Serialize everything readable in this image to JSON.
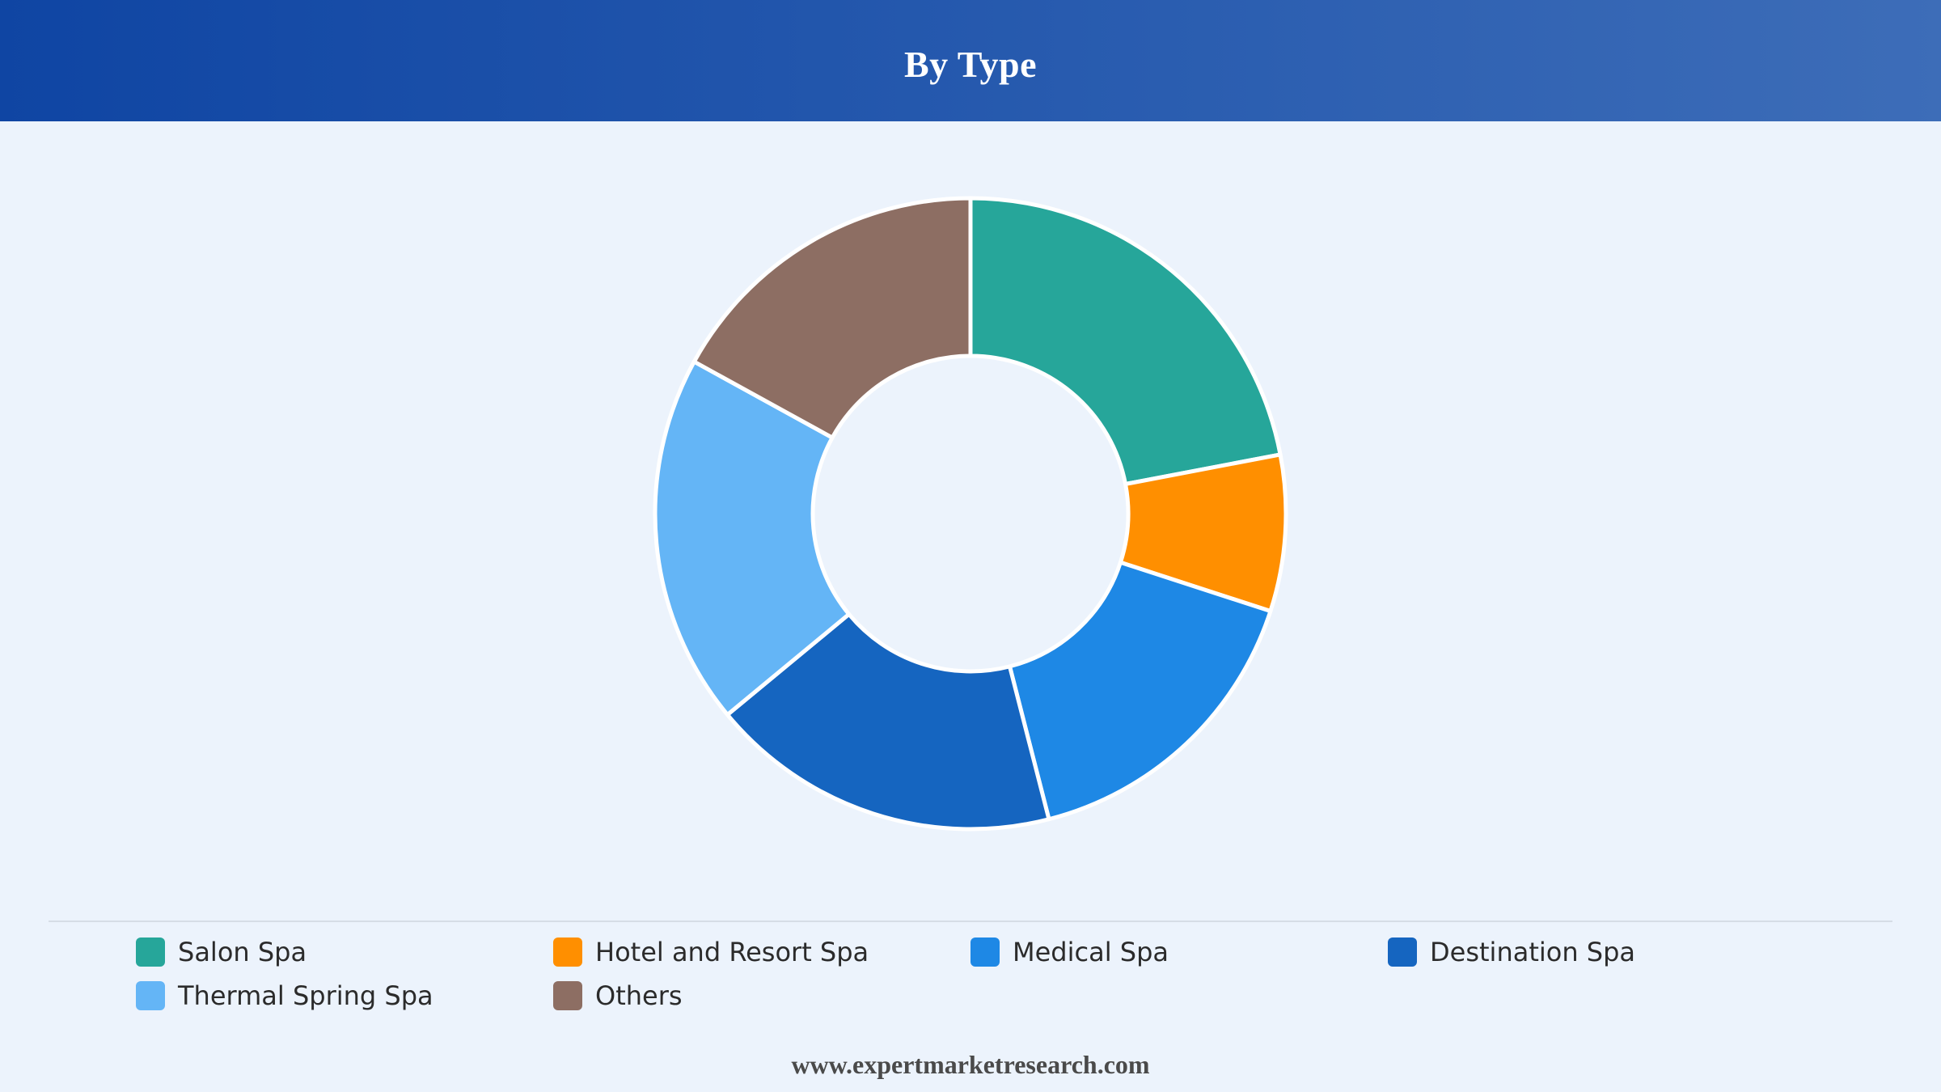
{
  "header": {
    "title": "By Type"
  },
  "chart_data": {
    "type": "pie",
    "variant": "donut",
    "title": "By Type",
    "categories": [
      "Salon Spa",
      "Hotel and Resort Spa",
      "Medical Spa",
      "Destination Spa",
      "Thermal Spring Spa",
      "Others"
    ],
    "values": [
      22,
      8,
      16,
      18,
      19,
      17
    ],
    "colors": [
      "#26a69a",
      "#ff8f00",
      "#1e88e5",
      "#1565c0",
      "#64b5f6",
      "#8d6e63"
    ],
    "legend_position": "bottom",
    "grid": false
  },
  "legend": {
    "items": [
      {
        "label": "Salon Spa",
        "color": "#26a69a"
      },
      {
        "label": "Hotel and Resort Spa",
        "color": "#ff8f00"
      },
      {
        "label": "Medical Spa",
        "color": "#1e88e5"
      },
      {
        "label": "Destination Spa",
        "color": "#1565c0"
      },
      {
        "label": "Thermal Spring Spa",
        "color": "#64b5f6"
      },
      {
        "label": "Others",
        "color": "#8d6e63"
      }
    ]
  },
  "footer": {
    "source": "www.expertmarketresearch.com"
  }
}
